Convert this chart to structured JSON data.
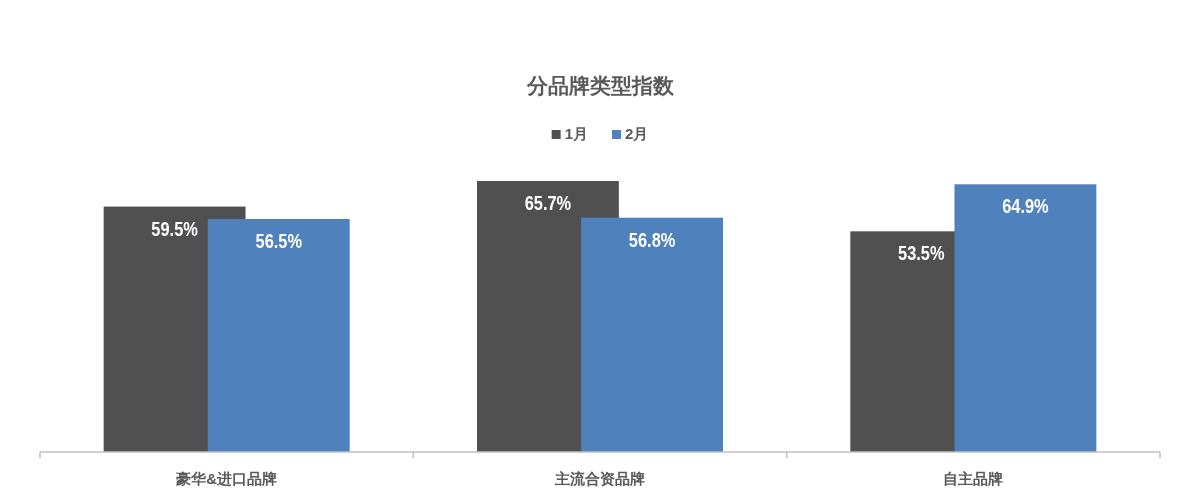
{
  "chart_data": {
    "type": "bar",
    "title": "分品牌类型指数",
    "categories": [
      "豪华&进口品牌",
      "主流合资品牌",
      "自主品牌"
    ],
    "series": [
      {
        "name": "1月",
        "color": "#505050",
        "values": [
          59.5,
          65.7,
          53.5
        ],
        "value_labels": [
          "59.5%",
          "65.7%",
          "53.5%"
        ]
      },
      {
        "name": "2月",
        "color": "#4f81bd",
        "values": [
          56.5,
          56.8,
          64.9
        ],
        "value_labels": [
          "56.5%",
          "56.8%",
          "64.9%"
        ]
      }
    ],
    "tick_labels": "x",
    "legend": "top"
  }
}
